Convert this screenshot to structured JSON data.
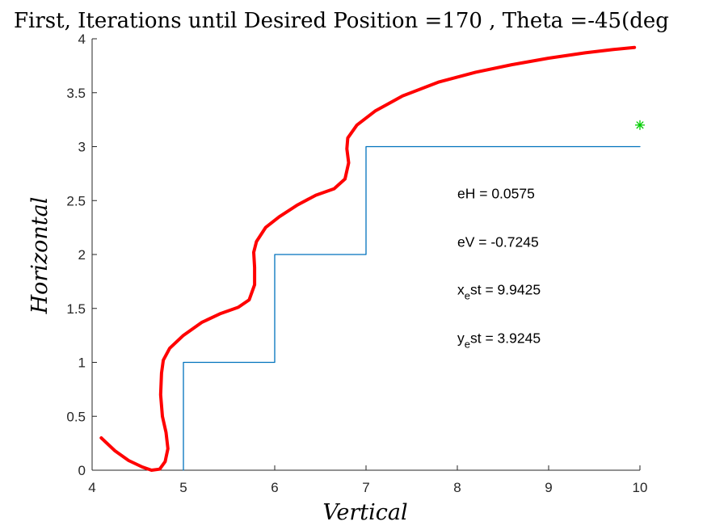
{
  "chart_data": {
    "type": "line",
    "title": "First, Iterations until Desired Position =170 , Theta =-45(deg",
    "xlabel": "Vertical",
    "ylabel": "Horizontal",
    "xlim": [
      4,
      10
    ],
    "ylim": [
      0,
      4
    ],
    "xticks": [
      "4",
      "5",
      "6",
      "7",
      "8",
      "9",
      "10"
    ],
    "yticks": [
      "0",
      "0.5",
      "1",
      "1.5",
      "2",
      "2.5",
      "3",
      "3.5",
      "4"
    ],
    "grid": false,
    "series": [
      {
        "role": "trajectory",
        "color": "#ff0000",
        "points": [
          [
            4.1,
            0.3
          ],
          [
            4.25,
            0.18
          ],
          [
            4.4,
            0.09
          ],
          [
            4.55,
            0.03
          ],
          [
            4.65,
            0.0
          ],
          [
            4.74,
            0.01
          ],
          [
            4.8,
            0.08
          ],
          [
            4.83,
            0.2
          ],
          [
            4.81,
            0.35
          ],
          [
            4.77,
            0.5
          ],
          [
            4.75,
            0.7
          ],
          [
            4.76,
            0.9
          ],
          [
            4.78,
            1.02
          ],
          [
            4.85,
            1.13
          ],
          [
            5.0,
            1.25
          ],
          [
            5.2,
            1.37
          ],
          [
            5.4,
            1.45
          ],
          [
            5.6,
            1.51
          ],
          [
            5.72,
            1.58
          ],
          [
            5.78,
            1.72
          ],
          [
            5.78,
            1.88
          ],
          [
            5.77,
            2.02
          ],
          [
            5.8,
            2.12
          ],
          [
            5.9,
            2.25
          ],
          [
            6.05,
            2.35
          ],
          [
            6.25,
            2.46
          ],
          [
            6.45,
            2.55
          ],
          [
            6.65,
            2.61
          ],
          [
            6.77,
            2.7
          ],
          [
            6.81,
            2.85
          ],
          [
            6.79,
            2.98
          ],
          [
            6.8,
            3.08
          ],
          [
            6.9,
            3.2
          ],
          [
            7.1,
            3.33
          ],
          [
            7.4,
            3.47
          ],
          [
            7.8,
            3.6
          ],
          [
            8.2,
            3.69
          ],
          [
            8.6,
            3.76
          ],
          [
            9.0,
            3.82
          ],
          [
            9.4,
            3.87
          ],
          [
            9.7,
            3.9
          ],
          [
            9.94,
            3.92
          ]
        ]
      },
      {
        "role": "desired-path",
        "color": "#0072bd",
        "points": [
          [
            5,
            0
          ],
          [
            5,
            1
          ],
          [
            6,
            1
          ],
          [
            6,
            2
          ],
          [
            7,
            2
          ],
          [
            7,
            3
          ],
          [
            10,
            3
          ]
        ]
      }
    ],
    "marker": {
      "x": 10,
      "y": 3.2,
      "symbol": "*",
      "color": "#00cc00"
    },
    "annotations": [
      {
        "text": "eH = 0.0575",
        "x": 8.0,
        "y": 2.52
      },
      {
        "text": "eV = -0.7245",
        "x": 8.0,
        "y": 2.07
      },
      {
        "text": "x",
        "sub": "e",
        "rest": "st = 9.9425",
        "x": 8.0,
        "y": 1.63
      },
      {
        "text": "y",
        "sub": "e",
        "rest": "st = 3.9245",
        "x": 8.0,
        "y": 1.18
      }
    ]
  }
}
